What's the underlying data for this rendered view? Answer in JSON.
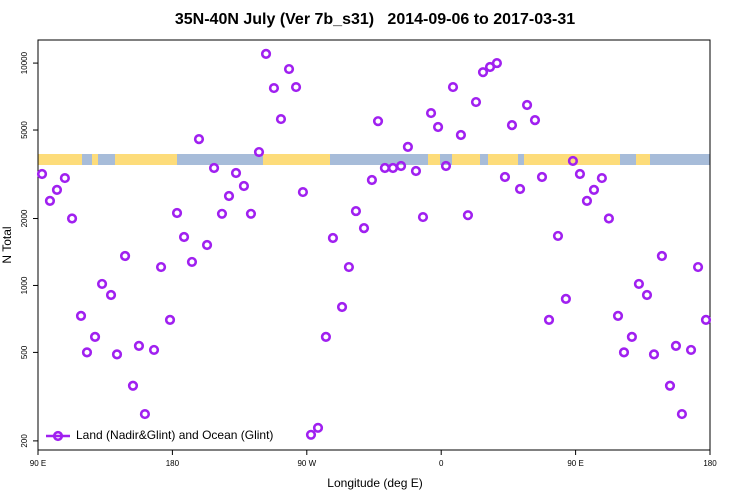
{
  "chart_data": {
    "type": "scatter",
    "title": "35N-40N July (Ver 7b_s31)   2014-09-06 to 2017-03-31",
    "x_label": "Longitude (deg E)",
    "y_label": "N Total",
    "xlim": [
      90,
      540
    ],
    "xticks": [
      {
        "value": 90,
        "label": "90 E"
      },
      180,
      {
        "value": 270,
        "label": "90 W"
      },
      {
        "value": 360,
        "label": "0"
      },
      {
        "value": 450,
        "label": "90 E"
      },
      {
        "value": 540,
        "label": "180"
      }
    ],
    "ylim": [
      182,
      12700
    ],
    "yticks": [
      200,
      500,
      1000,
      2000,
      5000,
      10000
    ],
    "log_y": true,
    "legend_position": "lower left",
    "x": [
      92.7,
      98,
      102.7,
      108,
      112.8,
      118.8,
      122.8,
      128.2,
      132.9,
      138.9,
      142.9,
      148.3,
      153.6,
      157.6,
      161.6,
      167.7,
      172.4,
      178.4,
      183.1,
      187.8,
      193.1,
      197.8,
      203.2,
      207.9,
      213.2,
      217.9,
      222.6,
      227.9,
      232.6,
      238,
      242.7,
      248,
      252.7,
      258.1,
      262.8,
      267.4,
      272.8,
      277.5,
      282.8,
      287.5,
      293.6,
      298.2,
      302.9,
      308.3,
      313.6,
      317.7,
      322.3,
      327.7,
      333.1,
      337.7,
      343.1,
      347.8,
      353.2,
      357.9,
      363.2,
      367.9,
      373.2,
      377.9,
      383.3,
      388,
      392.7,
      397.3,
      402.7,
      407.4,
      412.8,
      417.5,
      422.8,
      427.5,
      432.2,
      438.2,
      443.5,
      448.2,
      452.9,
      457.6,
      462.3,
      467.6,
      472.3,
      478.4,
      482.4,
      487.7,
      492.4,
      497.8,
      502.5,
      507.8,
      513.2,
      517.2,
      521.2,
      527.3,
      532,
      537.3
    ],
    "series": [
      {
        "name": "Land (Nadir&Glint) and Ocean (Glint)",
        "color": "#a020f0",
        "values": [
          3170,
          2400,
          2690,
          3040,
          2000,
          730,
          500,
          587,
          1016,
          906,
          490,
          1357,
          354,
          535,
          264,
          513,
          1210,
          700,
          2118,
          1652,
          1276,
          4550,
          1520,
          3375,
          2100,
          2525,
          3205,
          2800,
          2100,
          3980,
          11000,
          7720,
          5600,
          9400,
          7800,
          2630,
          213,
          229,
          587,
          1635,
          800,
          1210,
          2160,
          1810,
          2980,
          5480,
          3375,
          3375,
          3445,
          4200,
          3270,
          2030,
          5960,
          5160,
          3445,
          7800,
          4750,
          2070,
          6680,
          9100,
          9600,
          10000,
          3075,
          5260,
          2715,
          6480,
          5540,
          3075,
          700,
          1670,
          870,
          3630,
          3170,
          2400,
          2690,
          3040,
          2000,
          730,
          500,
          587,
          1016,
          906,
          490,
          1357,
          354,
          535,
          264,
          513,
          1210,
          700
        ]
      }
    ]
  }
}
